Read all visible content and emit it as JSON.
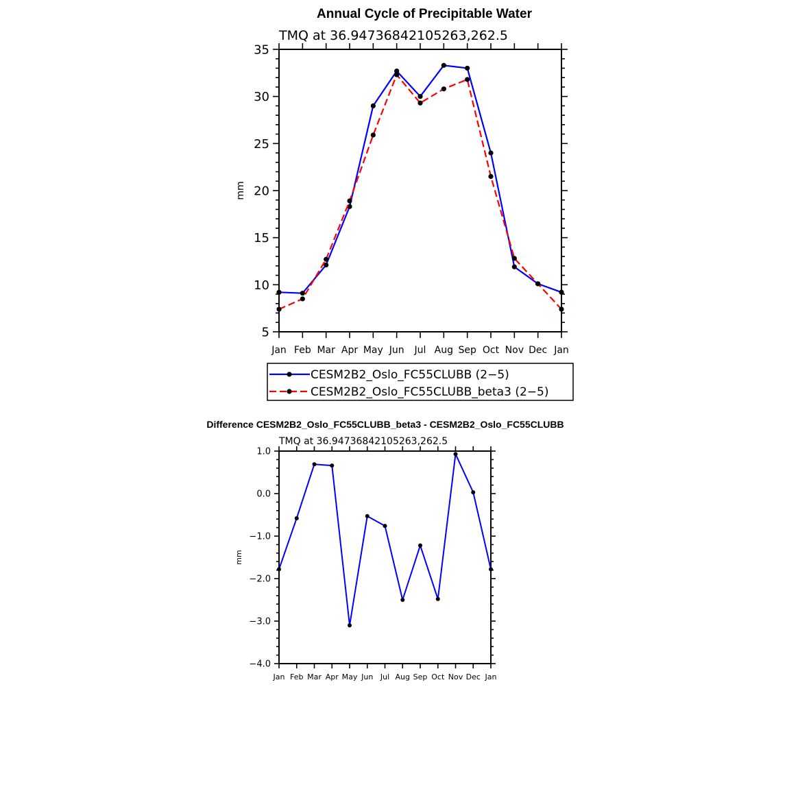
{
  "chart_data": [
    {
      "type": "line",
      "title": "Annual Cycle of Precipitable Water",
      "subtitle": "TMQ at 36.94736842105263,262.5",
      "ylabel": "mm",
      "xlabel": "",
      "ylim": [
        5,
        35
      ],
      "yticks": [
        5,
        10,
        15,
        20,
        25,
        30,
        35
      ],
      "ytick_labels": [
        "5",
        "10",
        "15",
        "20",
        "25",
        "30",
        "35"
      ],
      "categories": [
        "Jan",
        "Feb",
        "Mar",
        "Apr",
        "May",
        "Jun",
        "Jul",
        "Aug",
        "Sep",
        "Oct",
        "Nov",
        "Dec",
        "Jan"
      ],
      "series": [
        {
          "name": "CESM2B2_Oslo_FC55CLUBB (2−5)",
          "color": "#0000ff",
          "dash": "solid",
          "values": [
            9.2,
            9.1,
            12.1,
            18.3,
            29.0,
            32.7,
            30.0,
            33.3,
            33.0,
            24.0,
            11.9,
            10.1,
            9.2
          ]
        },
        {
          "name": "CESM2B2_Oslo_FC55CLUBB_beta3 (2−5)",
          "color": "#ff0000",
          "dash": "dashed",
          "values": [
            7.4,
            8.5,
            12.7,
            18.9,
            25.9,
            32.3,
            29.3,
            30.8,
            31.8,
            21.5,
            12.8,
            10.1,
            7.4
          ]
        }
      ],
      "legend": "below",
      "grid": false
    },
    {
      "type": "line",
      "title": "Difference CESM2B2_Oslo_FC55CLUBB_beta3 - CESM2B2_Oslo_FC55CLUBB",
      "subtitle": "TMQ at 36.94736842105263,262.5",
      "ylabel": "mm",
      "xlabel": "",
      "ylim": [
        -4.0,
        1.0
      ],
      "yticks": [
        -4.0,
        -3.0,
        -2.0,
        -1.0,
        0.0,
        1.0
      ],
      "ytick_labels": [
        "−4.0",
        "−3.0",
        "−2.0",
        "−1.0",
        "0.0",
        "1.0"
      ],
      "categories": [
        "Jan",
        "Feb",
        "Mar",
        "Apr",
        "May",
        "Jun",
        "Jul",
        "Aug",
        "Sep",
        "Oct",
        "Nov",
        "Dec",
        "Jan"
      ],
      "series": [
        {
          "color": "#0000ff",
          "dash": "solid",
          "values": [
            -1.78,
            -0.58,
            0.69,
            0.66,
            -3.1,
            -0.53,
            -0.76,
            -2.5,
            -1.22,
            -2.48,
            0.93,
            0.03,
            -1.78
          ]
        }
      ],
      "grid": false
    }
  ]
}
